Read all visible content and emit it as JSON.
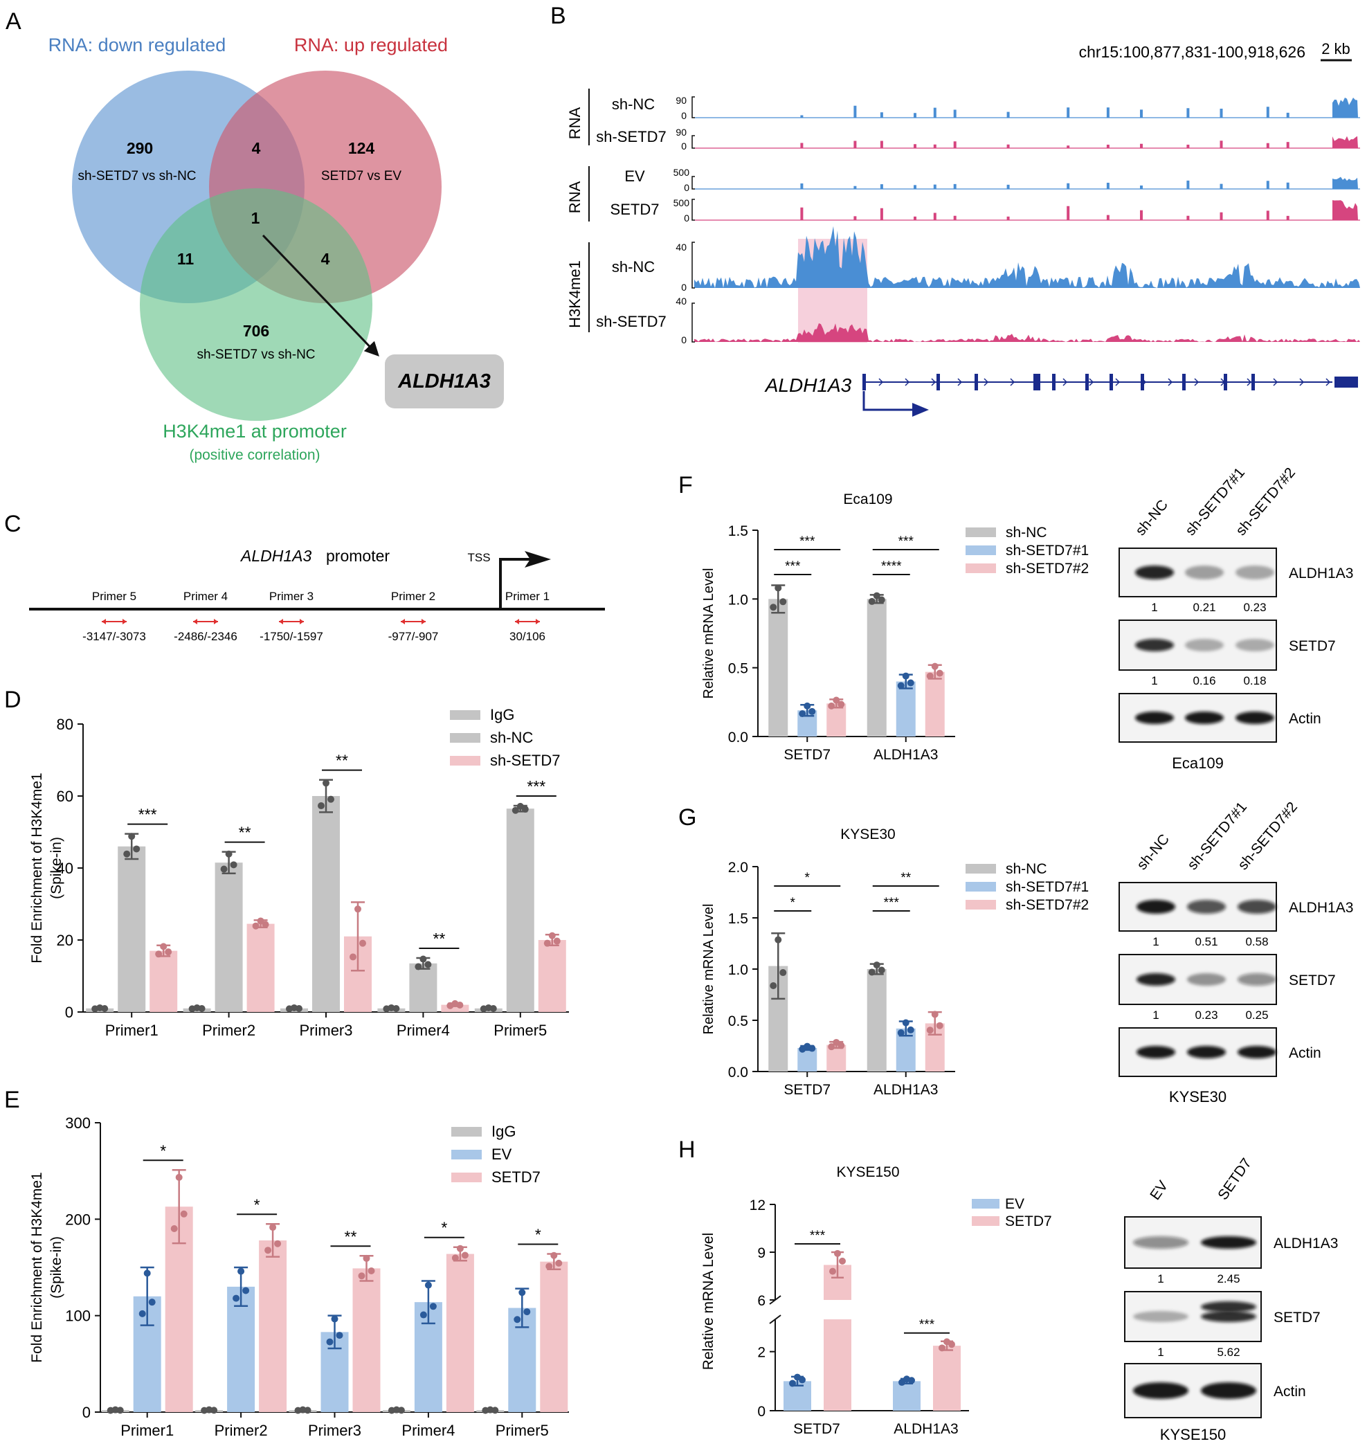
{
  "colors": {
    "blue": "#a9c7e8",
    "blue_dark": "#2a5a9a",
    "blue_track": "#4a8ed4",
    "pink": "#f2c4c8",
    "pink_dark": "#c77b82",
    "pink_track": "#d6457f",
    "gray": "#c4c4c4",
    "gray_dark": "#555555",
    "venn_blue": "#6f9fd5",
    "venn_red": "#cd5a6e",
    "venn_green": "#5fbf86",
    "gene_blue": "#1a2b8c",
    "highlight": "#f4c4d3"
  },
  "panels": {
    "A": {
      "letter": "A",
      "label_down": "RNA: down regulated",
      "label_up": "RNA: up regulated",
      "label_h3": "H3K4me1 at promoter",
      "label_h3_sub": "(positive correlation)",
      "n_blue": "290",
      "sub_blue": "sh-SETD7 vs sh-NC",
      "n_red": "124",
      "sub_red": "SETD7 vs EV",
      "n_green": "706",
      "sub_green": "sh-SETD7 vs sh-NC",
      "n_br": "4",
      "n_bg": "11",
      "n_rg": "4",
      "n_all": "1",
      "gene": "ALDH1A3"
    },
    "B": {
      "letter": "B",
      "coord": "chr15:100,877,831-100,918,626",
      "scale": "2 kb",
      "group1": "RNA",
      "t1": "sh-NC",
      "t2": "sh-SETD7",
      "group2": "RNA",
      "t3": "EV",
      "t4": "SETD7",
      "group3": "H3K4me1",
      "t5": "sh-NC",
      "t6": "sh-SETD7",
      "s90": "90",
      "s0": "0",
      "s500": "500",
      "s40": "40",
      "gene": "ALDH1A3"
    },
    "C": {
      "letter": "C",
      "gene": "ALDH1A3",
      "promoter": "promoter",
      "tss": "TSS",
      "primers": [
        {
          "name": "Primer 5",
          "range": "-3147/-3073"
        },
        {
          "name": "Primer 4",
          "range": "-2486/-2346"
        },
        {
          "name": "Primer 3",
          "range": "-1750/-1597"
        },
        {
          "name": "Primer 2",
          "range": "-977/-907"
        },
        {
          "name": "Primer 1",
          "range": "30/106"
        }
      ]
    },
    "F": {
      "letter": "F"
    },
    "G": {
      "letter": "G"
    },
    "H": {
      "letter": "H"
    }
  },
  "chart_data": [
    {
      "panel": "D",
      "type": "bar",
      "ylabel": "Fold Enrichment of H3K4me1\n(Spike-in)",
      "ylim": [
        0,
        80
      ],
      "yticks": [
        "0",
        "20",
        "40",
        "60",
        "80"
      ],
      "categories": [
        "Primer1",
        "Primer2",
        "Primer3",
        "Primer4",
        "Primer5"
      ],
      "series": [
        {
          "name": "IgG",
          "values": [
            1,
            1,
            1,
            1,
            1
          ],
          "err": [
            0.2,
            0.2,
            0.2,
            0.2,
            0.2
          ]
        },
        {
          "name": "sh-NC",
          "values": [
            46,
            41.5,
            60,
            13.5,
            56.5
          ],
          "err": [
            3.5,
            3,
            4.5,
            1.5,
            0.8
          ]
        },
        {
          "name": "sh-SETD7",
          "values": [
            17,
            24.5,
            21,
            2,
            20
          ],
          "err": [
            1.5,
            1,
            9.5,
            0.4,
            1.5
          ]
        }
      ],
      "sig": [
        "***",
        "**",
        "**",
        "**",
        "***"
      ]
    },
    {
      "panel": "E",
      "type": "bar",
      "ylabel": "Fold Enrichment of H3K4me1\n(Spike-in)",
      "ylim": [
        0,
        300
      ],
      "yticks": [
        "0",
        "100",
        "200",
        "300"
      ],
      "categories": [
        "Primer1",
        "Primer2",
        "Primer3",
        "Primer4",
        "Primer5"
      ],
      "series": [
        {
          "name": "IgG",
          "values": [
            2,
            2,
            2,
            2,
            2
          ],
          "err": [
            0.5,
            0.5,
            0.5,
            0.5,
            0.5
          ]
        },
        {
          "name": "EV",
          "values": [
            120,
            130,
            83,
            114,
            108
          ],
          "err": [
            30,
            20,
            17,
            22,
            20
          ]
        },
        {
          "name": "SETD7",
          "values": [
            213,
            178,
            149,
            164,
            156
          ],
          "err": [
            38,
            17,
            13,
            7,
            8
          ]
        }
      ],
      "sig": [
        "*",
        "*",
        "**",
        "*",
        "*"
      ]
    },
    {
      "panel": "F",
      "type": "bar",
      "title": "Eca109",
      "ylabel": "Relative mRNA Level",
      "ylim": [
        0,
        1.5
      ],
      "yticks": [
        "0.0",
        "0.5",
        "1.0",
        "1.5"
      ],
      "categories": [
        "SETD7",
        "ALDH1A3"
      ],
      "series": [
        {
          "name": "sh-NC",
          "values": [
            1.0,
            1.0
          ],
          "err": [
            0.1,
            0.03
          ]
        },
        {
          "name": "sh-SETD7#1",
          "values": [
            0.19,
            0.4
          ],
          "err": [
            0.04,
            0.05
          ]
        },
        {
          "name": "sh-SETD7#2",
          "values": [
            0.24,
            0.47
          ],
          "err": [
            0.03,
            0.05
          ]
        }
      ],
      "sig": [
        [
          "***",
          "***"
        ],
        [
          "****",
          "***"
        ]
      ],
      "blot": {
        "lanes": [
          "sh-NC",
          "sh-SETD7#1",
          "sh-SETD7#2"
        ],
        "rows": [
          "ALDH1A3",
          "SETD7",
          "Actin"
        ],
        "q1": [
          "1",
          "0.21",
          "0.23"
        ],
        "q2": [
          "1",
          "0.16",
          "0.18"
        ],
        "cell": "Eca109"
      }
    },
    {
      "panel": "G",
      "type": "bar",
      "title": "KYSE30",
      "ylabel": "Relative mRNA Level",
      "ylim": [
        0,
        2.0
      ],
      "yticks": [
        "0.0",
        "0.5",
        "1.0",
        "1.5",
        "2.0"
      ],
      "categories": [
        "SETD7",
        "ALDH1A3"
      ],
      "series": [
        {
          "name": "sh-NC",
          "values": [
            1.03,
            1.0
          ],
          "err": [
            0.32,
            0.05
          ]
        },
        {
          "name": "sh-SETD7#1",
          "values": [
            0.23,
            0.42
          ],
          "err": [
            0.02,
            0.07
          ]
        },
        {
          "name": "sh-SETD7#2",
          "values": [
            0.26,
            0.47
          ],
          "err": [
            0.03,
            0.11
          ]
        }
      ],
      "sig": [
        [
          "*",
          "*"
        ],
        [
          "***",
          "**"
        ]
      ],
      "blot": {
        "lanes": [
          "sh-NC",
          "sh-SETD7#1",
          "sh-SETD7#2"
        ],
        "rows": [
          "ALDH1A3",
          "SETD7",
          "Actin"
        ],
        "q1": [
          "1",
          "0.51",
          "0.58"
        ],
        "q2": [
          "1",
          "0.23",
          "0.25"
        ],
        "cell": "KYSE30"
      }
    },
    {
      "panel": "H",
      "type": "bar",
      "title": "KYSE150",
      "ylabel": "Relative mRNA Level",
      "yticks": [
        "0",
        "2",
        "6",
        "9",
        "12"
      ],
      "categories": [
        "SETD7",
        "ALDH1A3"
      ],
      "series": [
        {
          "name": "EV",
          "values": [
            1.0,
            1.0
          ],
          "err": [
            0.15,
            0.08
          ]
        },
        {
          "name": "SETD7",
          "values": [
            8.2,
            2.2
          ],
          "err": [
            0.8,
            0.15
          ]
        }
      ],
      "sig": [
        "***",
        "***"
      ],
      "blot": {
        "lanes": [
          "EV",
          "SETD7"
        ],
        "rows": [
          "ALDH1A3",
          "SETD7",
          "Actin"
        ],
        "q1": [
          "1",
          "2.45"
        ],
        "q2": [
          "1",
          "5.62"
        ],
        "cell": "KYSE150"
      }
    }
  ]
}
